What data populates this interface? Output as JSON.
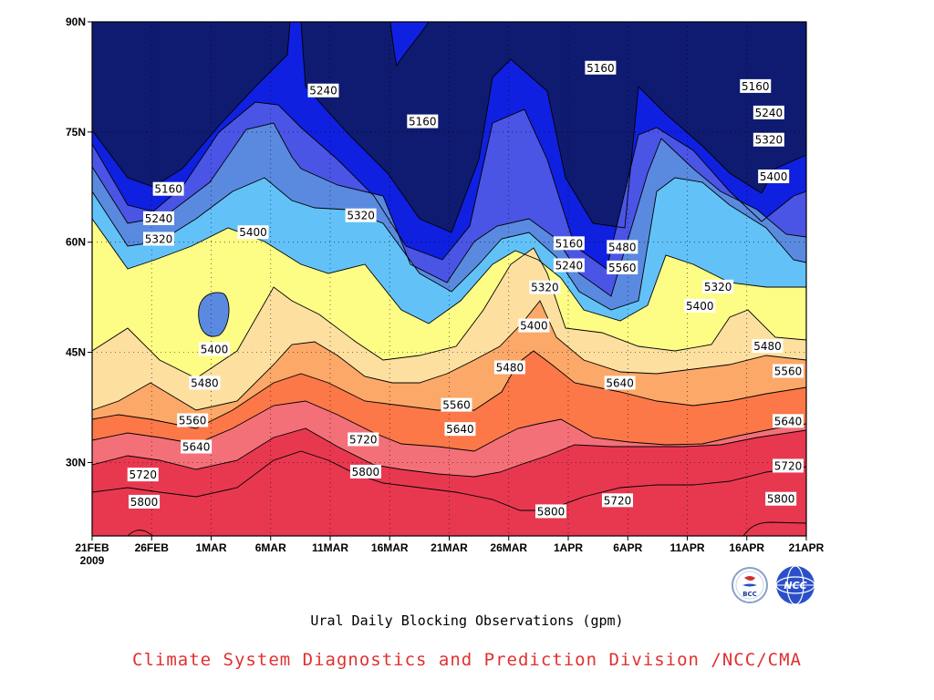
{
  "chart_data": {
    "type": "heatmap",
    "title": "",
    "xlabel": "",
    "ylabel": "",
    "x_ticks": [
      "21FEB",
      "26FEB",
      "1MAR",
      "6MAR",
      "11MAR",
      "16MAR",
      "21MAR",
      "26MAR",
      "1APR",
      "6APR",
      "11APR",
      "16APR",
      "21APR"
    ],
    "x_year": "2009",
    "x_range_days": [
      0,
      59
    ],
    "y_ticks": [
      "30N",
      "45N",
      "60N",
      "75N",
      "90N"
    ],
    "y_range_deg": [
      20,
      90
    ],
    "grid": "dotted",
    "contour_levels": [
      5160,
      5240,
      5320,
      5400,
      5480,
      5560,
      5640,
      5720,
      5800
    ],
    "band_colors": [
      "#0e1b70",
      "#1020e0",
      "#4a55e6",
      "#5a8ae0",
      "#62c2f8",
      "#fdfd86",
      "#fde0a0",
      "#fca868",
      "#fc7848",
      "#f47078",
      "#e83850"
    ],
    "contour_labels": [
      {
        "text": "5160",
        "x_day": 6.3,
        "y_deg": 67.2
      },
      {
        "text": "5240",
        "x_day": 5.5,
        "y_deg": 63.2
      },
      {
        "text": "5320",
        "x_day": 5.5,
        "y_deg": 60.4
      },
      {
        "text": "5400",
        "x_day": 13.3,
        "y_deg": 61.3
      },
      {
        "text": "5240",
        "x_day": 19.1,
        "y_deg": 80.6
      },
      {
        "text": "5160",
        "x_day": 27.3,
        "y_deg": 76.4
      },
      {
        "text": "5320",
        "x_day": 22.2,
        "y_deg": 63.6
      },
      {
        "text": "5400",
        "x_day": 10.1,
        "y_deg": 45.4
      },
      {
        "text": "5480",
        "x_day": 9.3,
        "y_deg": 40.8
      },
      {
        "text": "5560",
        "x_day": 8.3,
        "y_deg": 35.7
      },
      {
        "text": "5640",
        "x_day": 8.6,
        "y_deg": 32.1
      },
      {
        "text": "5720",
        "x_day": 4.2,
        "y_deg": 28.3
      },
      {
        "text": "5800",
        "x_day": 4.3,
        "y_deg": 24.6
      },
      {
        "text": "5720",
        "x_day": 22.4,
        "y_deg": 33.1
      },
      {
        "text": "5800",
        "x_day": 22.6,
        "y_deg": 28.7
      },
      {
        "text": "5560",
        "x_day": 30.1,
        "y_deg": 37.8
      },
      {
        "text": "5640",
        "x_day": 30.4,
        "y_deg": 34.5
      },
      {
        "text": "5480",
        "x_day": 34.5,
        "y_deg": 42.9
      },
      {
        "text": "5400",
        "x_day": 36.5,
        "y_deg": 48.6
      },
      {
        "text": "5320",
        "x_day": 37.4,
        "y_deg": 53.8
      },
      {
        "text": "5240",
        "x_day": 39.4,
        "y_deg": 56.8
      },
      {
        "text": "5160",
        "x_day": 39.4,
        "y_deg": 59.8
      },
      {
        "text": "5160",
        "x_day": 42.0,
        "y_deg": 83.7
      },
      {
        "text": "5480",
        "x_day": 43.8,
        "y_deg": 59.3
      },
      {
        "text": "5560",
        "x_day": 43.8,
        "y_deg": 56.5
      },
      {
        "text": "5640",
        "x_day": 43.6,
        "y_deg": 40.8
      },
      {
        "text": "5720",
        "x_day": 43.4,
        "y_deg": 24.8
      },
      {
        "text": "5800",
        "x_day": 37.9,
        "y_deg": 23.3
      },
      {
        "text": "5400",
        "x_day": 50.2,
        "y_deg": 51.3
      },
      {
        "text": "5320",
        "x_day": 51.7,
        "y_deg": 53.9
      },
      {
        "text": "5160",
        "x_day": 54.8,
        "y_deg": 81.2
      },
      {
        "text": "5240",
        "x_day": 55.9,
        "y_deg": 77.6
      },
      {
        "text": "5320",
        "x_day": 55.9,
        "y_deg": 73.9
      },
      {
        "text": "5400",
        "x_day": 56.3,
        "y_deg": 68.9
      },
      {
        "text": "5480",
        "x_day": 55.8,
        "y_deg": 45.8
      },
      {
        "text": "5560",
        "x_day": 59.3,
        "y_deg": 42.4
      },
      {
        "text": "5640",
        "x_day": 60.2,
        "y_deg": 35.6
      },
      {
        "text": "5720",
        "x_day": 60.2,
        "y_deg": 29.5
      },
      {
        "text": "5800",
        "x_day": 56.9,
        "y_deg": 25.0
      }
    ]
  },
  "caption": "Ural Daily Blocking Observations (gpm)",
  "credit": "Climate System Diagnostics and Prediction Division /NCC/CMA",
  "logos": [
    {
      "icon": "bcc-logo-icon",
      "text": "BCC"
    },
    {
      "icon": "ncc-logo-icon",
      "text": "NCC"
    }
  ]
}
